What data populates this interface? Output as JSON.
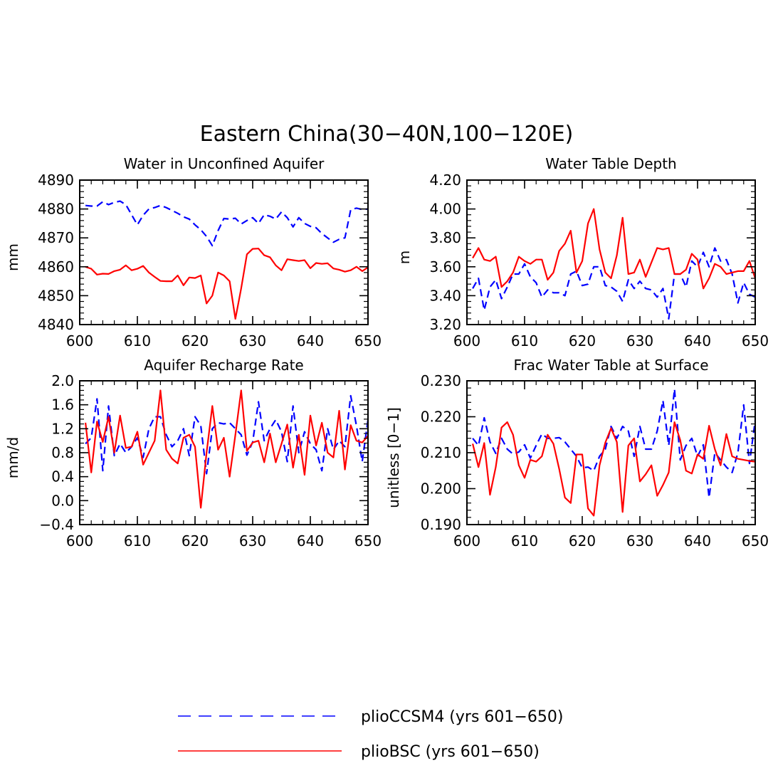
{
  "figure_title": "Eastern China(30−40N,100−120E)",
  "colors": {
    "pliocCSM4": "#0000ff",
    "plioBSC": "#ff0000",
    "axis": "#000000"
  },
  "legend": [
    {
      "label": "plioCCSM4 (yrs 601−650)",
      "color": "#0000ff",
      "style": "dashed"
    },
    {
      "label": "plioBSC (yrs 601−650)",
      "color": "#ff0000",
      "style": "solid"
    }
  ],
  "chart_data": [
    {
      "type": "line",
      "title": "Water in Unconfined Aquifer",
      "xlabel": "",
      "ylabel": "mm",
      "xlim": [
        600,
        650
      ],
      "ylim": [
        4840,
        4890
      ],
      "xticks": [
        "600",
        "610",
        "620",
        "630",
        "640",
        "650"
      ],
      "yticks": [
        "4840",
        "4850",
        "4860",
        "4870",
        "4880",
        "4890"
      ],
      "x_start": 601,
      "series": [
        {
          "name": "plioCCSM4 (yrs 601−650)",
          "style": "dashed",
          "values": [
            4881.2,
            4881.0,
            4881.0,
            4882.5,
            4881.5,
            4882.3,
            4882.7,
            4881.5,
            4878.0,
            4874.5,
            4877.8,
            4880.0,
            4880.5,
            4881.2,
            4880.5,
            4879.5,
            4878.5,
            4877.3,
            4876.5,
            4874.5,
            4872.8,
            4870.5,
            4867.3,
            4872.5,
            4876.7,
            4876.5,
            4876.8,
            4874.8,
            4876.0,
            4877.0,
            4875.0,
            4878.0,
            4877.5,
            4876.5,
            4879.0,
            4877.0,
            4873.8,
            4877.0,
            4875.0,
            4874.0,
            4873.5,
            4871.5,
            4870.0,
            4868.5,
            4869.5,
            4870.0,
            4879.7,
            4880.3,
            4879.8,
            4880.0
          ]
        },
        {
          "name": "plioBSC (yrs 601−650)",
          "style": "solid",
          "values": [
            4860.0,
            4859.3,
            4857.3,
            4857.6,
            4857.5,
            4858.5,
            4859.0,
            4860.5,
            4858.8,
            4859.3,
            4860.3,
            4858.0,
            4856.5,
            4855.1,
            4855.0,
            4855.0,
            4857.0,
            4853.6,
            4856.3,
            4856.1,
            4857.0,
            4847.3,
            4850.0,
            4858.0,
            4857.0,
            4855.0,
            4842.0,
            4852.5,
            4864.3,
            4866.2,
            4866.3,
            4864.0,
            4863.3,
            4860.5,
            4858.8,
            4862.6,
            4862.3,
            4862.0,
            4862.3,
            4859.5,
            4861.3,
            4861.0,
            4861.2,
            4859.4,
            4859.0,
            4858.3,
            4858.8,
            4860.0,
            4858.5,
            4859.8
          ]
        }
      ]
    },
    {
      "type": "line",
      "title": "Water Table Depth",
      "xlabel": "",
      "ylabel": "m",
      "xlim": [
        600,
        650
      ],
      "ylim": [
        3.2,
        4.2
      ],
      "xticks": [
        "600",
        "610",
        "620",
        "630",
        "640",
        "650"
      ],
      "yticks": [
        "3.20",
        "3.40",
        "3.60",
        "3.80",
        "4.00",
        "4.20"
      ],
      "x_start": 601,
      "series": [
        {
          "name": "plioCCSM4 (yrs 601−650)",
          "style": "dashed",
          "values": [
            3.45,
            3.52,
            3.3,
            3.46,
            3.51,
            3.38,
            3.46,
            3.55,
            3.55,
            3.62,
            3.53,
            3.49,
            3.39,
            3.44,
            3.42,
            3.42,
            3.4,
            3.55,
            3.57,
            3.47,
            3.48,
            3.6,
            3.6,
            3.47,
            3.46,
            3.43,
            3.36,
            3.51,
            3.45,
            3.5,
            3.45,
            3.44,
            3.39,
            3.45,
            3.24,
            3.55,
            3.55,
            3.46,
            3.64,
            3.6,
            3.7,
            3.6,
            3.73,
            3.64,
            3.65,
            3.55,
            3.35,
            3.49,
            3.41,
            3.39
          ]
        },
        {
          "name": "plioBSC (yrs 601−650)",
          "style": "solid",
          "values": [
            3.66,
            3.73,
            3.65,
            3.64,
            3.67,
            3.46,
            3.5,
            3.56,
            3.67,
            3.64,
            3.62,
            3.65,
            3.65,
            3.51,
            3.56,
            3.71,
            3.76,
            3.85,
            3.56,
            3.64,
            3.9,
            4.0,
            3.72,
            3.56,
            3.52,
            3.68,
            3.94,
            3.55,
            3.56,
            3.65,
            3.53,
            3.63,
            3.73,
            3.72,
            3.73,
            3.55,
            3.55,
            3.58,
            3.69,
            3.65,
            3.45,
            3.52,
            3.62,
            3.6,
            3.55,
            3.56,
            3.57,
            3.57,
            3.64,
            3.52
          ]
        }
      ]
    },
    {
      "type": "line",
      "title": "Aquifer Recharge Rate",
      "xlabel": "",
      "ylabel": "mm/d",
      "xlim": [
        600,
        650
      ],
      "ylim": [
        -0.4,
        2.0
      ],
      "xticks": [
        "600",
        "610",
        "620",
        "630",
        "640",
        "650"
      ],
      "yticks": [
        "−0.4",
        "0.0",
        "0.4",
        "0.8",
        "1.2",
        "1.6",
        "2.0"
      ],
      "x_start": 601,
      "series": [
        {
          "name": "plioCCSM4 (yrs 601−650)",
          "style": "dashed",
          "values": [
            0.95,
            1.05,
            1.7,
            0.5,
            1.58,
            0.75,
            0.95,
            0.8,
            0.9,
            1.05,
            0.72,
            1.2,
            1.4,
            1.4,
            1.1,
            0.9,
            1.0,
            1.2,
            0.75,
            1.4,
            1.25,
            0.45,
            1.2,
            1.3,
            1.28,
            1.3,
            1.2,
            1.1,
            0.76,
            0.98,
            1.65,
            1.0,
            1.2,
            1.35,
            1.15,
            0.65,
            1.58,
            0.8,
            1.15,
            0.95,
            0.85,
            0.5,
            1.2,
            0.85,
            1.0,
            0.9,
            1.75,
            1.25,
            0.65,
            1.35
          ]
        },
        {
          "name": "plioBSC (yrs 601−650)",
          "style": "solid",
          "values": [
            1.3,
            0.47,
            1.32,
            0.98,
            1.4,
            0.8,
            1.42,
            0.88,
            0.9,
            1.15,
            0.6,
            0.8,
            1.0,
            1.84,
            0.85,
            0.7,
            0.62,
            1.05,
            1.1,
            0.9,
            -0.12,
            0.8,
            1.58,
            0.85,
            1.05,
            0.4,
            1.1,
            1.84,
            0.83,
            0.97,
            1.0,
            0.64,
            1.12,
            0.64,
            0.95,
            1.27,
            0.55,
            1.1,
            0.43,
            1.42,
            0.92,
            1.3,
            0.8,
            0.72,
            1.5,
            0.52,
            1.26,
            1.0,
            0.97,
            1.08
          ]
        }
      ]
    },
    {
      "type": "line",
      "title": "Frac Water Table at Surface",
      "xlabel": "",
      "ylabel": "unitless [0−1]",
      "xlim": [
        600,
        650
      ],
      "ylim": [
        0.19,
        0.23
      ],
      "xticks": [
        "600",
        "610",
        "620",
        "630",
        "640",
        "650"
      ],
      "yticks": [
        "0.190",
        "0.200",
        "0.210",
        "0.220",
        "0.230"
      ],
      "x_start": 601,
      "series": [
        {
          "name": "plioCCSM4 (yrs 601−650)",
          "style": "dashed",
          "values": [
            0.214,
            0.212,
            0.2197,
            0.213,
            0.2098,
            0.214,
            0.211,
            0.2096,
            0.2102,
            0.2122,
            0.2085,
            0.212,
            0.2152,
            0.214,
            0.214,
            0.2142,
            0.213,
            0.211,
            0.209,
            0.2058,
            0.206,
            0.205,
            0.209,
            0.211,
            0.2173,
            0.214,
            0.2173,
            0.216,
            0.209,
            0.2173,
            0.211,
            0.211,
            0.216,
            0.2245,
            0.212,
            0.2277,
            0.208,
            0.212,
            0.214,
            0.209,
            0.2122,
            0.1975,
            0.21,
            0.208,
            0.206,
            0.2045,
            0.21,
            0.2233,
            0.207,
            0.219
          ]
        },
        {
          "name": "plioBSC (yrs 601−650)",
          "style": "solid",
          "values": [
            0.2125,
            0.206,
            0.2127,
            0.1983,
            0.206,
            0.217,
            0.2185,
            0.215,
            0.2065,
            0.203,
            0.208,
            0.2075,
            0.209,
            0.215,
            0.2125,
            0.2055,
            0.1975,
            0.196,
            0.2095,
            0.2095,
            0.1945,
            0.1925,
            0.2065,
            0.2128,
            0.2168,
            0.213,
            0.1935,
            0.212,
            0.214,
            0.202,
            0.204,
            0.2065,
            0.198,
            0.201,
            0.2045,
            0.2185,
            0.2135,
            0.205,
            0.2042,
            0.2095,
            0.2083,
            0.2175,
            0.211,
            0.2065,
            0.2152,
            0.209,
            0.2083,
            0.208,
            0.2077,
            0.2075
          ]
        }
      ]
    }
  ]
}
